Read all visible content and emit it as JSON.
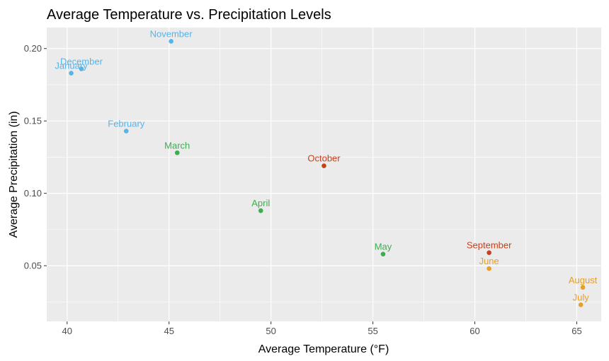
{
  "chart_data": {
    "type": "scatter",
    "title": "Average Temperature vs. Precipitation Levels",
    "xlabel": "Average Temperature (°F)",
    "ylabel": "Average Precipitation (in)",
    "xlim": [
      39.0,
      66.2
    ],
    "ylim": [
      0.0115,
      0.2145
    ],
    "xticks": [
      40,
      45,
      50,
      55,
      60,
      65
    ],
    "xtick_labels": [
      "40",
      "45",
      "50",
      "55",
      "60",
      "65"
    ],
    "yticks": [
      0.05,
      0.1,
      0.15,
      0.2
    ],
    "ytick_labels": [
      "0.05",
      "0.10",
      "0.15",
      "0.20"
    ],
    "grid": true,
    "legend": "none",
    "colors": {
      "winter": "#56B4E9",
      "spring": "#3DAE4E",
      "summer": "#E69F28",
      "fall": "#C8401A",
      "panel": "#EBEBEB",
      "grid": "#FFFFFF"
    },
    "points": [
      {
        "label": "January",
        "x": 40.2,
        "y": 0.183,
        "group": "winter"
      },
      {
        "label": "December",
        "x": 40.7,
        "y": 0.186,
        "group": "winter"
      },
      {
        "label": "February",
        "x": 42.9,
        "y": 0.143,
        "group": "winter"
      },
      {
        "label": "November",
        "x": 45.1,
        "y": 0.205,
        "group": "winter"
      },
      {
        "label": "March",
        "x": 45.4,
        "y": 0.128,
        "group": "spring"
      },
      {
        "label": "April",
        "x": 49.5,
        "y": 0.088,
        "group": "spring"
      },
      {
        "label": "May",
        "x": 55.5,
        "y": 0.058,
        "group": "spring"
      },
      {
        "label": "October",
        "x": 52.6,
        "y": 0.119,
        "group": "fall"
      },
      {
        "label": "September",
        "x": 60.7,
        "y": 0.059,
        "group": "fall"
      },
      {
        "label": "June",
        "x": 60.7,
        "y": 0.048,
        "group": "summer"
      },
      {
        "label": "August",
        "x": 65.3,
        "y": 0.035,
        "group": "summer"
      },
      {
        "label": "July",
        "x": 65.2,
        "y": 0.023,
        "group": "summer"
      }
    ]
  }
}
